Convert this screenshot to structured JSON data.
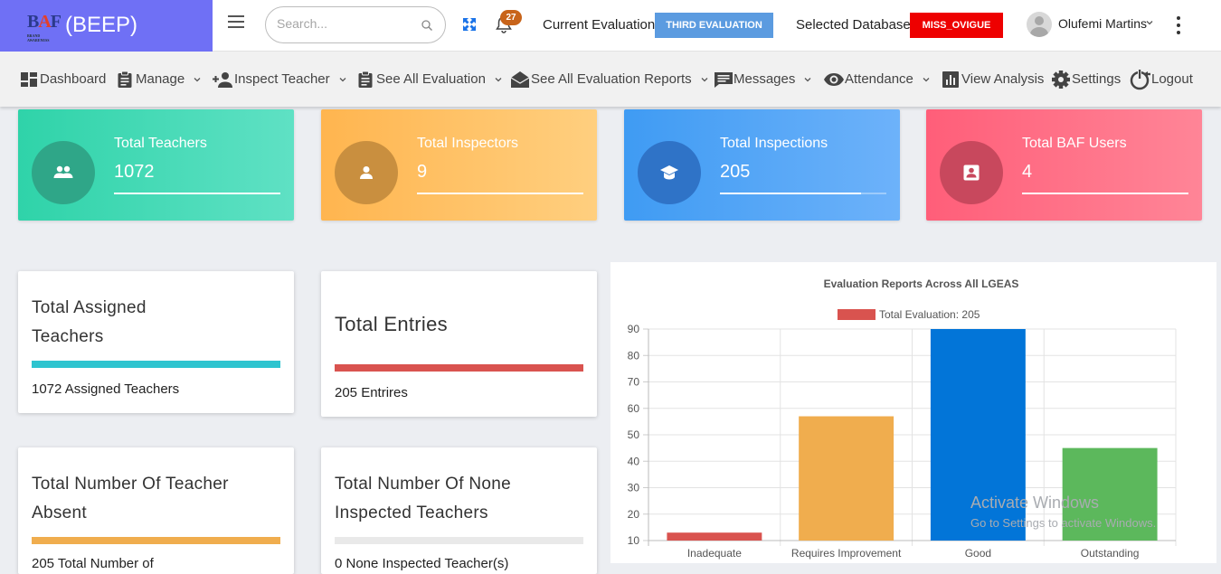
{
  "brand": {
    "logo_text": "BAF",
    "logo_tag": "BRAND AWARENESS",
    "app_name": "(BEEP)"
  },
  "search": {
    "placeholder": "Search..."
  },
  "notifications": {
    "count": "27"
  },
  "evaluation": {
    "label": "Current Evaluation:",
    "value": "THIRD EVALUATION"
  },
  "database": {
    "label": "Selected Database:",
    "value": "MISS_OVIGUE"
  },
  "user": {
    "name": "Olufemi Martins"
  },
  "nav": {
    "dashboard": "Dashboard",
    "manage": "Manage",
    "inspect_teacher": "Inspect Teacher",
    "see_all_evaluation": "See All Evaluation",
    "see_all_reports": "See All Evaluation Reports",
    "messages": "Messages",
    "attendance": "Attendance",
    "view_analysis": "View Analysis",
    "settings": "Settings",
    "logout": "Logout"
  },
  "stats": [
    {
      "label": "Total Teachers",
      "value": "1072",
      "bar_fill": 1.0,
      "icon": "users-icon"
    },
    {
      "label": "Total Inspectors",
      "value": "9",
      "bar_fill": 1.0,
      "icon": "user-icon"
    },
    {
      "label": "Total Inspections",
      "value": "205",
      "bar_fill": 0.85,
      "icon": "graduation-cap-icon"
    },
    {
      "label": "Total BAF Users",
      "value": "4",
      "bar_fill": 1.0,
      "icon": "contact-card-icon"
    }
  ],
  "cards": {
    "assigned": {
      "title_line1": "Total Assigned",
      "title_line2": "Teachers",
      "subtitle": "1072 Assigned Teachers",
      "progress": 1.0,
      "color": "#2ec4cf"
    },
    "entries": {
      "title": "Total Entries",
      "subtitle": "205 Entrires",
      "progress": 1.0,
      "color": "#d9534f"
    },
    "absent": {
      "title_line1": "Total Number Of Teacher",
      "title_line2": "Absent",
      "subtitle": "205 Total Number of",
      "progress": 1.0,
      "color": "#f0ad4e"
    },
    "not_inspected": {
      "title_line1": "Total Number Of None",
      "title_line2": "Inspected Teachers",
      "subtitle": "0 None Inspected Teacher(s)",
      "progress": 0.0,
      "color": "#e5e5e5"
    }
  },
  "chart_data": {
    "type": "bar",
    "title": "Evaluation Reports Across All LGEAS",
    "legend": "Total Evaluation: 205",
    "legend_placement": "top",
    "categories": [
      "Inadequate",
      "Requires Improvement",
      "Good",
      "Outstanding"
    ],
    "values": [
      13,
      57,
      90,
      45
    ],
    "colors": [
      "#d9534f",
      "#f0ad4e",
      "#0275d8",
      "#5cb85c"
    ],
    "yticks": [
      10,
      20,
      30,
      40,
      50,
      60,
      70,
      80,
      90
    ],
    "ylim": [
      10,
      90
    ],
    "grid": true
  },
  "watermark": {
    "line1": "Activate Windows",
    "line2": "Go to Settings to activate Windows."
  }
}
